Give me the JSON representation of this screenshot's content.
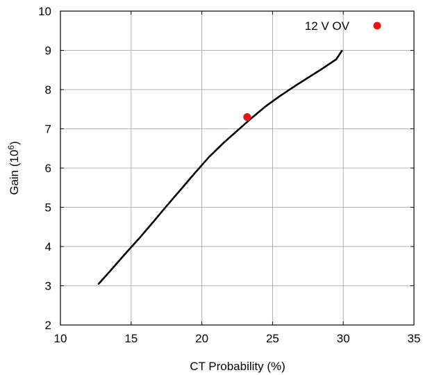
{
  "chart_data": {
    "type": "line",
    "title": "",
    "xlabel": "CT Probability (%)",
    "ylabel_main": "Gain (10",
    "ylabel_sup": "6",
    "ylabel_end": ")",
    "xlim": [
      10,
      35
    ],
    "ylim": [
      2,
      10
    ],
    "xticks": [
      10,
      15,
      20,
      25,
      30,
      35
    ],
    "yticks": [
      2,
      3,
      4,
      5,
      6,
      7,
      8,
      9,
      10
    ],
    "grid": true,
    "legend_position": "top-right",
    "series": [
      {
        "kind": "line",
        "color": "#000000",
        "x": [
          12.7,
          13.5,
          14.5,
          15.5,
          16.5,
          17.5,
          18.5,
          19.5,
          20.5,
          21.5,
          22.5,
          23.5,
          24.5,
          25.5,
          26.5,
          27.5,
          28.5,
          29.5,
          29.9
        ],
        "y": [
          3.05,
          3.37,
          3.78,
          4.18,
          4.6,
          5.03,
          5.45,
          5.87,
          6.28,
          6.63,
          6.95,
          7.27,
          7.57,
          7.83,
          8.07,
          8.3,
          8.53,
          8.77,
          8.99
        ]
      },
      {
        "kind": "point",
        "color": "#ee1111",
        "x": [
          23.2
        ],
        "y": [
          7.3
        ]
      }
    ],
    "legend": [
      {
        "label": "12 V OV",
        "color": "#ee1111",
        "marker": "circle"
      }
    ]
  }
}
